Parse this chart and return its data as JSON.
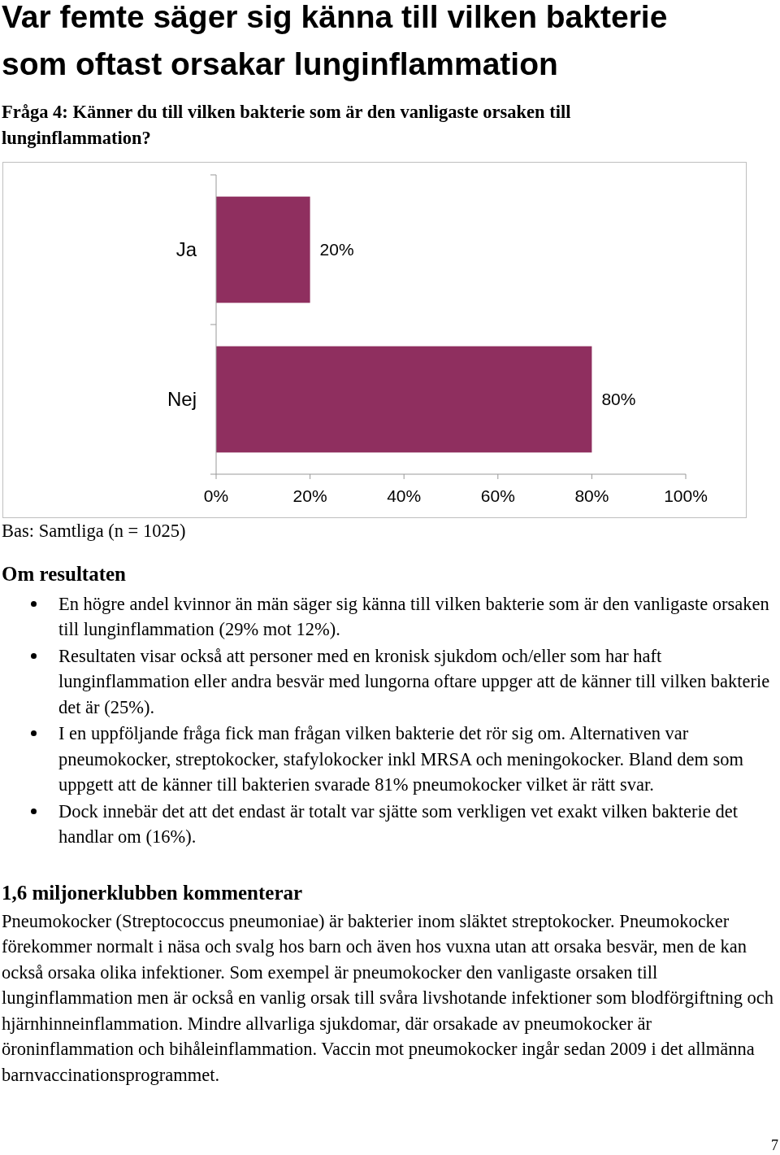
{
  "chart_data": {
    "type": "bar",
    "orientation": "horizontal",
    "title": "Var femte säger sig känna till vilken bakterie som oftast orsakar lunginflammation",
    "subtitle": "Fråga 4: Känner du till vilken bakterie som är den vanligaste orsaken till lunginflammation?",
    "categories": [
      "Ja",
      "Nej"
    ],
    "values": [
      20,
      80
    ],
    "color": "#8f2f5f",
    "value_labels": [
      "20%",
      "80%"
    ],
    "xlim": [
      0,
      100
    ],
    "xticks": [
      {
        "value": 0,
        "label": "0%"
      },
      {
        "value": 20,
        "label": "20%"
      },
      {
        "value": 40,
        "label": "40%"
      },
      {
        "value": 60,
        "label": "60%"
      },
      {
        "value": 80,
        "label": "80%"
      },
      {
        "value": 100,
        "label": "100%"
      }
    ],
    "grid": false,
    "annotations": [
      "Bas: Samtliga (n = 1025)",
      "Om resultaten",
      "En högre andel kvinnor än män säger sig känna till vilken bakterie som är den vanligaste orsaken till lunginflammation (29% mot 12%).",
      "Resultaten visar också att personer med en kronisk sjukdom och/eller som har haft lunginflammation eller andra besvär med lungorna oftare uppger att de känner till vilken bakterie det är (25%).",
      "I en uppföljande fråga fick man frågan vilken bakterie det rör sig om. Alternativen var pneumokocker, streptokocker, stafylokocker inkl MRSA och meningokocker. Bland dem som uppgett att de känner till bakterien svarade 81% pneumokocker vilket är rätt svar.",
      "Dock innebär det att det endast är totalt var sjätte som verkligen vet exakt vilken bakterie det handlar om (16%).",
      "1,6 miljonerklubben kommenterar",
      "Pneumokocker (Streptococcus pneumoniae) är bakterier inom släktet streptokocker. Pneumokocker förekommer normalt i näsa och svalg hos barn och även hos vuxna utan att orsaka besvär, men de kan också orsaka olika infektioner. Som exempel är pneumokocker den vanligaste orsaken till lunginflammation men är också en vanlig orsak till svåra livshotande infektioner som blodförgiftning och hjärnhinneinflammation. Mindre allvarliga sjukdomar, där orsakade av pneumokocker är öroninflammation och bihåleinflammation. Vaccin mot pneumokocker ingår sedan 2009 i det allmänna barnvaccinationsprogrammet.",
      "7"
    ]
  }
}
